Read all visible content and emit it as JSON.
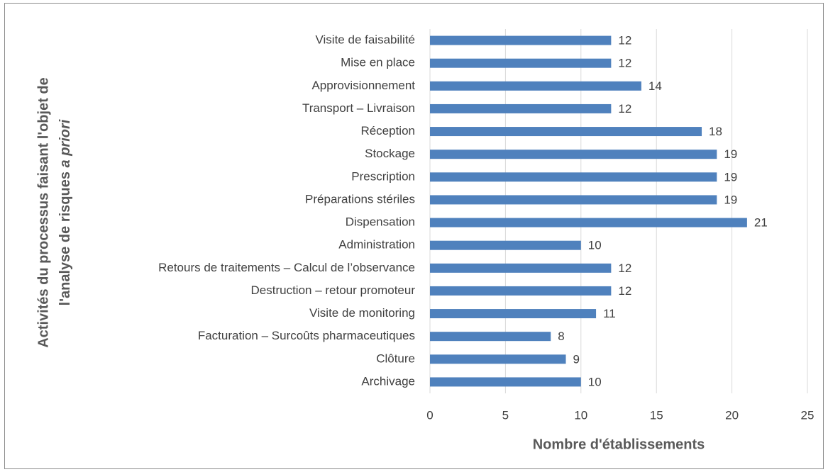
{
  "chart_data": {
    "type": "bar",
    "orientation": "horizontal",
    "xlabel": "Nombre d'établissements",
    "ylabel": {
      "lines": [
        "Activités du processus faisant l'objet de",
        "l'analyse de risques"
      ],
      "italic": "a priori"
    },
    "categories": [
      "Visite de faisabilité",
      "Mise en place",
      "Approvisionnement",
      "Transport – Livraison",
      "Réception",
      "Stockage",
      "Prescription",
      "Préparations stériles",
      "Dispensation",
      "Administration",
      "Retours de traitements – Calcul de l’observance",
      "Destruction – retour promoteur",
      "Visite de monitoring",
      "Facturation – Surcoûts pharmaceutiques",
      "Clôture",
      "Archivage"
    ],
    "values": [
      12,
      12,
      14,
      12,
      18,
      19,
      19,
      19,
      21,
      10,
      12,
      12,
      11,
      8,
      9,
      10
    ],
    "color": "#4f81bd",
    "xlim": [
      0,
      25
    ],
    "xticks": [
      0,
      5,
      10,
      15,
      20,
      25
    ],
    "grid": true
  }
}
